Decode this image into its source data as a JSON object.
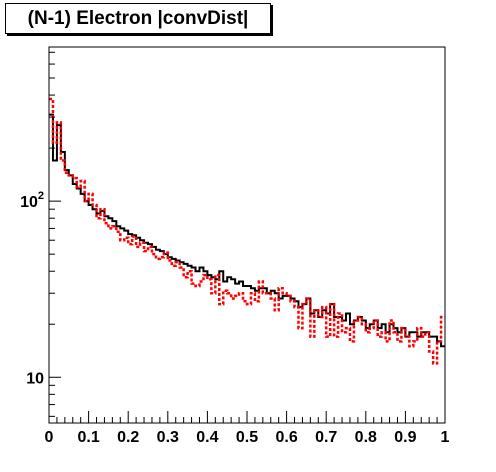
{
  "chart_data": {
    "type": "histogram",
    "title": "(N-1) Electron |convDist|",
    "xlabel": "",
    "ylabel": "",
    "xlim": [
      0,
      1
    ],
    "ylim": [
      5.5,
      750
    ],
    "yscale": "log",
    "bins": 100,
    "x_ticks": [
      "0",
      "0.1",
      "0.2",
      "0.3",
      "0.4",
      "0.5",
      "0.6",
      "0.7",
      "0.8",
      "0.9",
      "1"
    ],
    "x_tick_values": [
      0,
      0.1,
      0.2,
      0.3,
      0.4,
      0.5,
      0.6,
      0.7,
      0.8,
      0.9,
      1.0
    ],
    "y_ticks": [
      {
        "value": 10,
        "base": "10",
        "exp": ""
      },
      {
        "value": 100,
        "base": "10",
        "exp": "2"
      }
    ],
    "grid": false,
    "legend": "none",
    "series": [
      {
        "style": "solid",
        "color": "#000000",
        "values": [
          310,
          170,
          270,
          190,
          150,
          140,
          125,
          118,
          110,
          100,
          95,
          90,
          85,
          88,
          82,
          80,
          77,
          72,
          70,
          68,
          65,
          64,
          62,
          60,
          58,
          57,
          55,
          53,
          52,
          50,
          48,
          47,
          46,
          45,
          44,
          43,
          42,
          40,
          42,
          40,
          38,
          37,
          36,
          40,
          35,
          37,
          36,
          34,
          35,
          33,
          33,
          32,
          31,
          32,
          32,
          30,
          31,
          30,
          28,
          29,
          29,
          28,
          27,
          25,
          26,
          28,
          23,
          24,
          22,
          24,
          23,
          26,
          22,
          22,
          21,
          23,
          20,
          21,
          22,
          21,
          19,
          20,
          21,
          19,
          20,
          18,
          20,
          19,
          18,
          19,
          17,
          18,
          18,
          17,
          18,
          18,
          17,
          17,
          16,
          15
        ]
      },
      {
        "style": "dashed",
        "color": "#ff0000",
        "values": [
          380,
          215,
          280,
          170,
          145,
          140,
          135,
          120,
          130,
          100,
          110,
          95,
          80,
          90,
          75,
          70,
          72,
          67,
          60,
          62,
          57,
          63,
          55,
          58,
          52,
          55,
          50,
          47,
          48,
          51,
          46,
          43,
          45,
          42,
          37,
          40,
          34,
          33,
          35,
          38,
          36,
          30,
          38,
          26,
          31,
          30,
          28,
          29,
          30,
          27,
          26,
          30,
          27,
          35,
          30,
          30,
          28,
          24,
          32,
          30,
          29,
          27,
          25,
          19,
          26,
          28,
          17,
          24,
          22,
          25,
          17,
          26,
          17,
          23,
          18,
          19,
          16,
          21,
          22,
          20,
          18,
          19,
          21,
          17,
          18,
          16,
          21,
          18,
          16,
          19,
          17,
          15,
          16,
          19,
          17,
          18,
          14,
          12,
          16,
          22
        ]
      }
    ]
  }
}
